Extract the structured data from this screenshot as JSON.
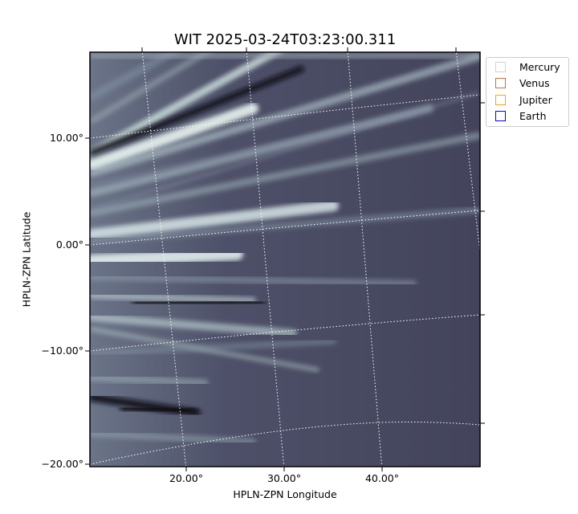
{
  "chart_data": {
    "type": "heatmap",
    "title": "WIT 2025-03-24T03:23:00.311",
    "xlabel": "HPLN-ZPN Longitude",
    "ylabel": "HPLN-ZPN Latitude",
    "x_ticks": [
      "20.00°",
      "30.00°",
      "40.00°"
    ],
    "y_ticks": [
      "10.00°",
      "0.00°",
      "−10.00°",
      "−20.00°"
    ],
    "grid": true,
    "colormap": "bone",
    "legend": {
      "placement": "outside-top-right",
      "entries": [
        {
          "label": "Mercury",
          "color": "#d3d3d3"
        },
        {
          "label": "Venus",
          "color": "#c87137"
        },
        {
          "label": "Jupiter",
          "color": "#ffa500"
        },
        {
          "label": "Earth",
          "color": "#0000ff"
        }
      ]
    }
  }
}
